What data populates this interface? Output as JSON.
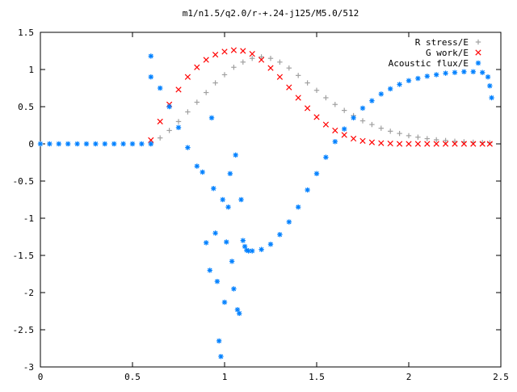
{
  "chart_data": {
    "type": "scatter",
    "title": "m1/n1.5/q2.0/r-+.24-j125/M5.0/512",
    "xlabel": "",
    "ylabel": "",
    "xlim": [
      0,
      2.5
    ],
    "ylim": [
      -3,
      1.5
    ],
    "xticks": [
      0,
      0.5,
      1,
      1.5,
      2,
      2.5
    ],
    "xtick_labels": [
      "0",
      "0.5",
      "1",
      "1.5",
      "2",
      "2.5"
    ],
    "yticks": [
      -3,
      -2.5,
      -2,
      -1.5,
      -1,
      -0.5,
      0,
      0.5,
      1,
      1.5
    ],
    "ytick_labels": [
      "-3",
      "-2.5",
      "-2",
      "-1.5",
      "-1",
      "-0.5",
      "0",
      "0.5",
      "1",
      "1.5"
    ],
    "grid": false,
    "legend_position": "top-right",
    "series": [
      {
        "name": "R stress/E",
        "marker": "+",
        "color": "#a0a0a0",
        "x": [
          0.6,
          0.65,
          0.7,
          0.75,
          0.8,
          0.85,
          0.9,
          0.95,
          1.0,
          1.05,
          1.1,
          1.15,
          1.2,
          1.25,
          1.3,
          1.35,
          1.4,
          1.45,
          1.5,
          1.55,
          1.6,
          1.65,
          1.7,
          1.75,
          1.8,
          1.85,
          1.9,
          1.95,
          2.0,
          2.05,
          2.1,
          2.15,
          2.2,
          2.25,
          2.3,
          2.35,
          2.4,
          2.44
        ],
        "y": [
          0.0,
          0.08,
          0.18,
          0.3,
          0.43,
          0.56,
          0.69,
          0.82,
          0.93,
          1.03,
          1.1,
          1.15,
          1.17,
          1.15,
          1.1,
          1.02,
          0.92,
          0.82,
          0.72,
          0.62,
          0.53,
          0.45,
          0.38,
          0.31,
          0.26,
          0.21,
          0.17,
          0.14,
          0.11,
          0.09,
          0.07,
          0.055,
          0.045,
          0.035,
          0.028,
          0.022,
          0.018,
          0.015
        ]
      },
      {
        "name": "G work/E",
        "marker": "x",
        "color": "#ff0000",
        "x": [
          0.6,
          0.65,
          0.7,
          0.75,
          0.8,
          0.85,
          0.9,
          0.95,
          1.0,
          1.05,
          1.1,
          1.15,
          1.2,
          1.25,
          1.3,
          1.35,
          1.4,
          1.45,
          1.5,
          1.55,
          1.6,
          1.65,
          1.7,
          1.75,
          1.8,
          1.85,
          1.9,
          1.95,
          2.0,
          2.05,
          2.1,
          2.15,
          2.2,
          2.25,
          2.3,
          2.35,
          2.4,
          2.44
        ],
        "y": [
          0.05,
          0.3,
          0.53,
          0.73,
          0.9,
          1.03,
          1.13,
          1.2,
          1.24,
          1.26,
          1.25,
          1.21,
          1.13,
          1.02,
          0.9,
          0.76,
          0.62,
          0.48,
          0.36,
          0.26,
          0.18,
          0.12,
          0.07,
          0.04,
          0.02,
          0.01,
          0.005,
          0.0,
          0.0,
          0.0,
          0.0,
          0.0,
          0.0,
          0.0,
          0.0,
          0.0,
          0.0,
          0.0
        ]
      },
      {
        "name": "Acoustic flux/E",
        "marker": "*",
        "color": "#0080ff",
        "x": [
          0.0,
          0.05,
          0.1,
          0.15,
          0.2,
          0.25,
          0.3,
          0.35,
          0.4,
          0.45,
          0.5,
          0.55,
          0.6,
          0.6,
          0.6,
          0.65,
          0.7,
          0.75,
          0.8,
          0.85,
          0.88,
          0.9,
          0.92,
          0.93,
          0.94,
          0.95,
          0.96,
          0.97,
          0.98,
          0.99,
          1.0,
          1.01,
          1.02,
          1.03,
          1.04,
          1.05,
          1.06,
          1.07,
          1.08,
          1.09,
          1.1,
          1.11,
          1.12,
          1.13,
          1.15,
          1.2,
          1.25,
          1.3,
          1.35,
          1.4,
          1.45,
          1.5,
          1.55,
          1.6,
          1.65,
          1.7,
          1.75,
          1.8,
          1.85,
          1.9,
          1.95,
          2.0,
          2.05,
          2.1,
          2.15,
          2.2,
          2.25,
          2.3,
          2.35,
          2.4,
          2.43,
          2.44,
          2.45
        ],
        "y": [
          0.0,
          0.0,
          0.0,
          0.0,
          0.0,
          0.0,
          0.0,
          0.0,
          0.0,
          0.0,
          0.0,
          0.0,
          0.0,
          1.18,
          0.9,
          0.75,
          0.5,
          0.22,
          -0.05,
          -0.3,
          -0.38,
          -1.33,
          -1.7,
          0.35,
          -0.6,
          -1.2,
          -1.85,
          -2.65,
          -2.86,
          -0.75,
          -2.13,
          -1.32,
          -0.85,
          -0.4,
          -1.58,
          -1.95,
          -0.15,
          -2.23,
          -2.28,
          -0.75,
          -1.3,
          -1.38,
          -1.43,
          -1.44,
          -1.44,
          -1.42,
          -1.35,
          -1.22,
          -1.05,
          -0.85,
          -0.62,
          -0.4,
          -0.18,
          0.03,
          0.2,
          0.35,
          0.48,
          0.58,
          0.67,
          0.74,
          0.8,
          0.85,
          0.88,
          0.91,
          0.93,
          0.95,
          0.96,
          0.97,
          0.97,
          0.96,
          0.9,
          0.78,
          0.62
        ]
      }
    ]
  }
}
